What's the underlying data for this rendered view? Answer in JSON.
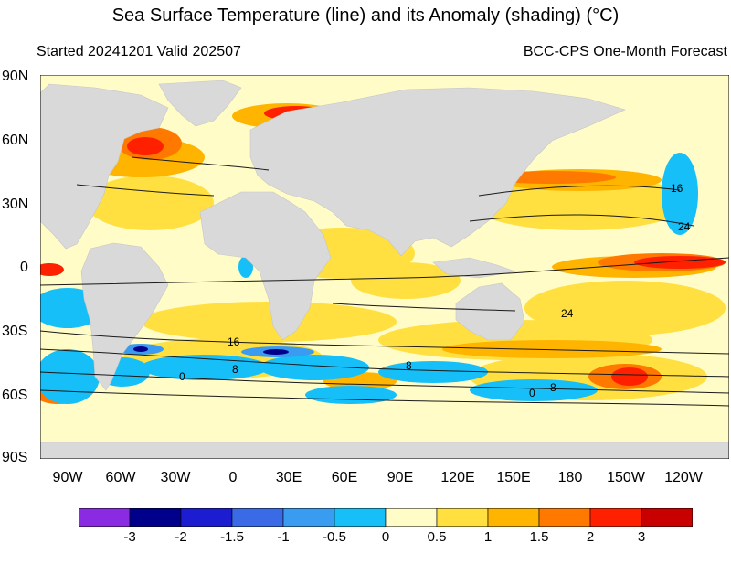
{
  "title": "Sea Surface Temperature (line) and its Anomaly (shading) (°C)",
  "subtitle_left": "Started 20241201  Valid 202507",
  "subtitle_right": "BCC-CPS One-Month Forecast",
  "lat_labels": [
    "90N",
    "60N",
    "30N",
    "0",
    "30S",
    "60S",
    "90S"
  ],
  "lon_labels": [
    "90W",
    "60W",
    "30W",
    "0",
    "30E",
    "60E",
    "90E",
    "120E",
    "150E",
    "180",
    "150W",
    "120W"
  ],
  "contour_labels": [
    "16",
    "24",
    "24",
    "16",
    "8",
    "8",
    "0",
    "8",
    "0"
  ],
  "colorbar": {
    "labels": [
      "-3",
      "-2",
      "-1.5",
      "-1",
      "-0.5",
      "0",
      "0.5",
      "1",
      "1.5",
      "2",
      "3"
    ],
    "colors": [
      "#8a2be2",
      "#00008b",
      "#1c1cd0",
      "#3b6ae6",
      "#3a9cf0",
      "#16bff8",
      "#fffcc8",
      "#ffe040",
      "#ffb400",
      "#ff7800",
      "#ff2000",
      "#c80000"
    ]
  },
  "land_color": "#d9d9d9"
}
